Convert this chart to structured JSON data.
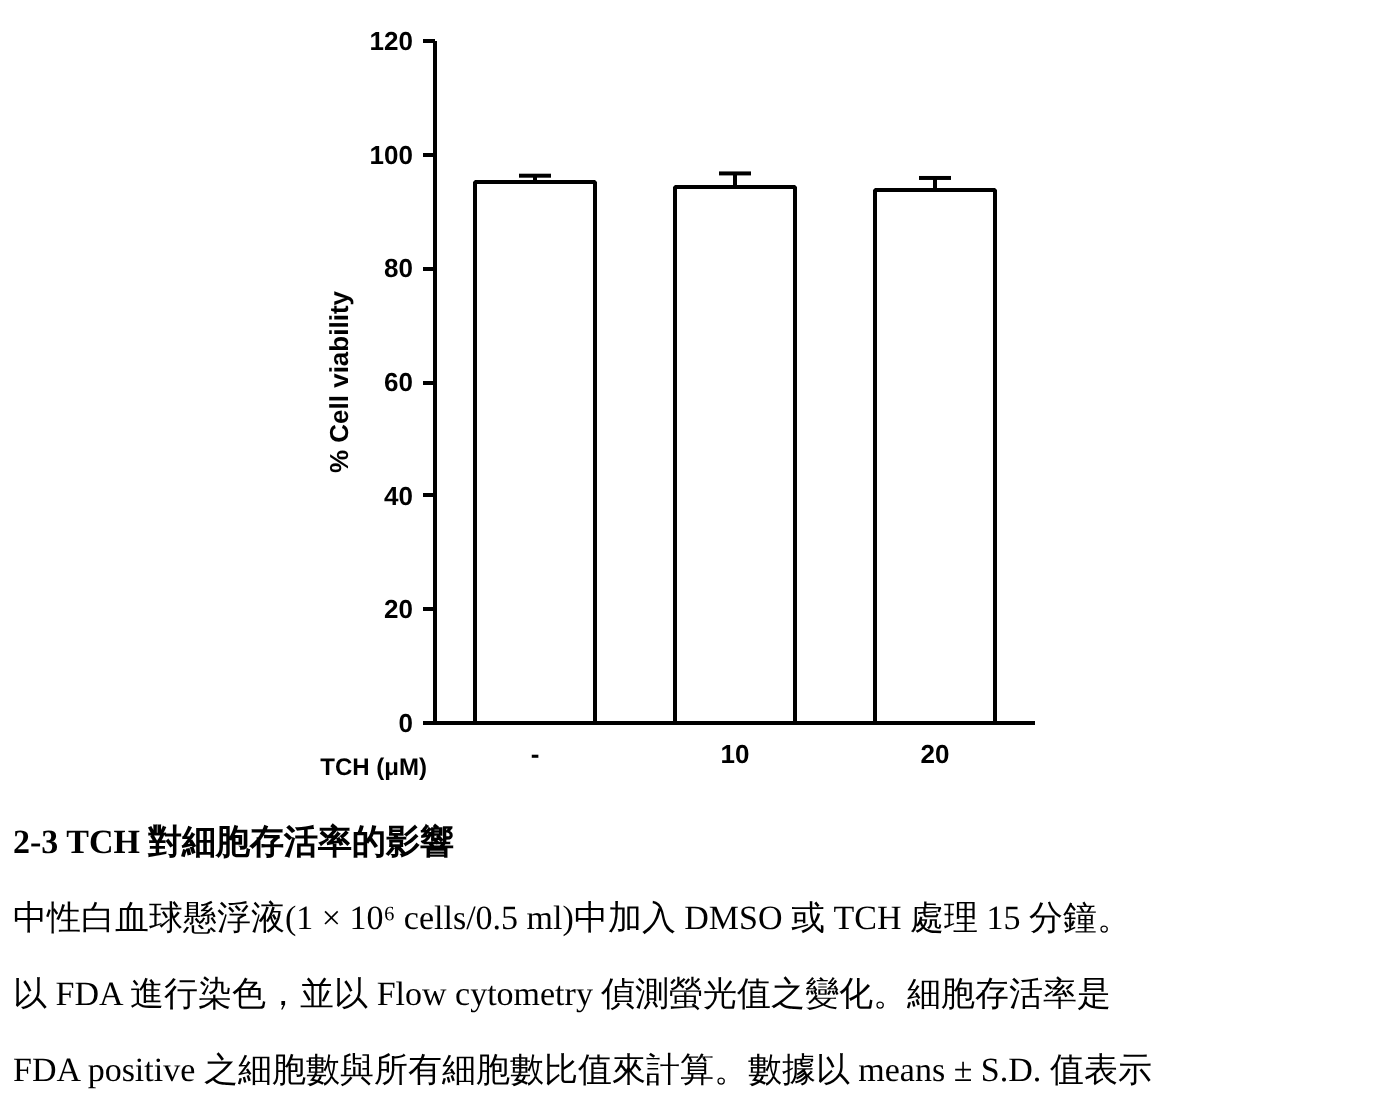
{
  "chart_data": {
    "type": "bar",
    "ylabel": "% Cell viability",
    "xlabel": "TCH (μM)",
    "categories": [
      "-",
      "10",
      "20"
    ],
    "values": [
      95.2,
      94.3,
      93.8
    ],
    "errors": [
      1.1,
      2.4,
      2.1
    ],
    "color": "#ffffff",
    "ylim": [
      0,
      120
    ],
    "yticks": [
      0,
      20,
      40,
      60,
      80,
      100,
      120
    ],
    "grid": false,
    "annotations": [
      "2-3 TCH 對細胞存活率的影響",
      "中性白血球懸浮液(1 × 10⁶ cells/0.5 ml)中加入 DMSO 或 TCH 處理 15 分鐘。",
      "以 FDA 進行染色，並以 Flow cytometry 偵測螢光值之變化。細胞存活率是",
      "FDA positive 之細胞數與所有細胞數比值來計算。數據以 means ± S.D. 值表示"
    ]
  }
}
